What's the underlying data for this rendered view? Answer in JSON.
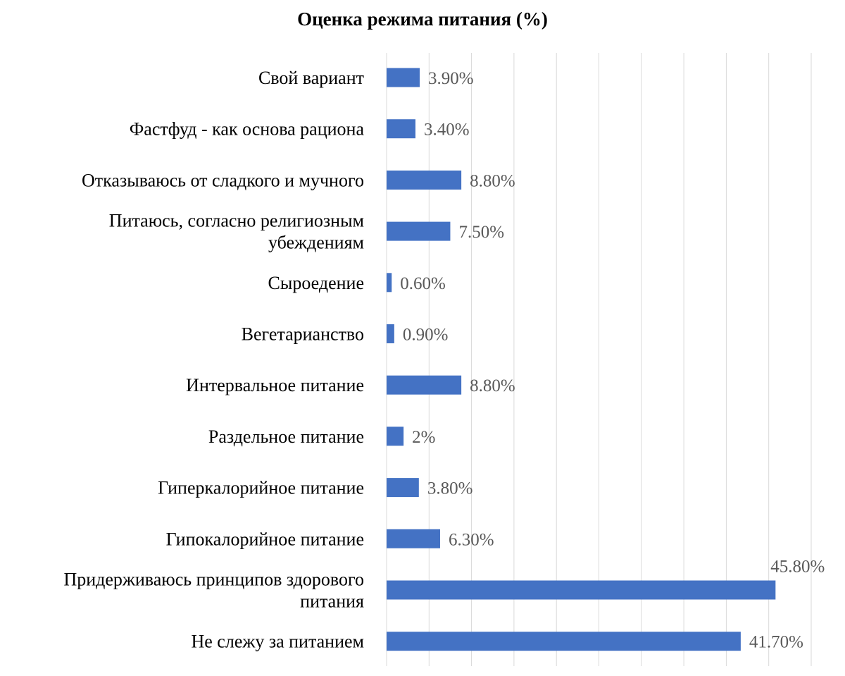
{
  "chart_data": {
    "type": "bar",
    "orientation": "horizontal",
    "title": "Оценка режима питания (%)",
    "categories": [
      [
        "Свой вариант"
      ],
      [
        "Фастфуд - как основа рациона"
      ],
      [
        "Отказываюсь от сладкого и мучного"
      ],
      [
        "Питаюсь, согласно религиозным",
        "убеждениям"
      ],
      [
        "Сыроедение"
      ],
      [
        "Вегетарианство"
      ],
      [
        "Интервальное питание"
      ],
      [
        "Раздельное питание"
      ],
      [
        "Гиперкалорийное питание"
      ],
      [
        "Гипокалорийное питание"
      ],
      [
        "Придерживаюсь принципов здорового",
        "питания"
      ],
      [
        "Не слежу за питанием"
      ]
    ],
    "values": [
      3.9,
      3.4,
      8.8,
      7.5,
      0.6,
      0.9,
      8.8,
      2.0,
      3.8,
      6.3,
      45.8,
      41.7
    ],
    "data_labels": [
      "3.90%",
      "3.40%",
      "8.80%",
      "7.50%",
      "0.60%",
      "0.90%",
      "8.80%",
      "2%",
      "3.80%",
      "6.30%",
      "45.80%",
      "41.70%"
    ],
    "xlim": [
      0,
      50
    ],
    "x_gridlines": [
      0,
      5,
      10,
      15,
      20,
      25,
      30,
      35,
      40,
      45,
      50
    ],
    "x_tick_labels_shown": false,
    "grid": true,
    "legend": "none",
    "bar_color": "#4472c4",
    "grid_color": "#d9d9d9",
    "label_color": "#595959"
  }
}
